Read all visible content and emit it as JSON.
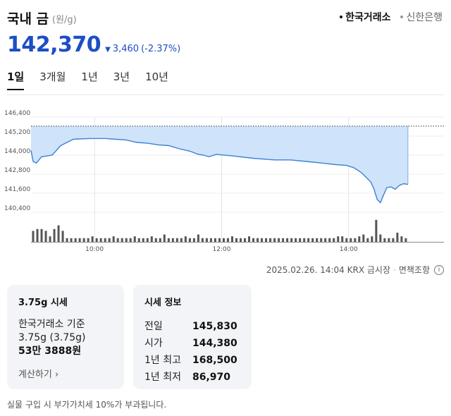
{
  "header": {
    "title": "국내 금",
    "unit": "(원/g)",
    "sources": [
      {
        "label": "한국거래소",
        "active": true
      },
      {
        "label": "신한은행",
        "active": false
      }
    ]
  },
  "price": {
    "value": "142,370",
    "change": "3,460",
    "change_pct": "(-2.37%)",
    "direction_icon": "triangle-down-icon"
  },
  "tabs": [
    {
      "label": "1일",
      "active": true
    },
    {
      "label": "3개월",
      "active": false
    },
    {
      "label": "1년",
      "active": false
    },
    {
      "label": "3년",
      "active": false
    },
    {
      "label": "10년",
      "active": false
    }
  ],
  "chart_data": {
    "type": "area",
    "ylim": [
      140400,
      146400
    ],
    "yticks": [
      "146,400",
      "145,200",
      "144,000",
      "142,800",
      "141,600",
      "140,400"
    ],
    "ytick_values": [
      146400,
      145200,
      144000,
      142800,
      141600,
      140400
    ],
    "xticks": [
      "10:00",
      "12:00",
      "14:00"
    ],
    "xtick_minutes": [
      60,
      180,
      300
    ],
    "x_range_minutes": [
      0,
      390
    ],
    "previous_close": 145830,
    "series": [
      {
        "values": [
          [
            0,
            144300
          ],
          [
            2,
            143600
          ],
          [
            5,
            143500
          ],
          [
            10,
            143900
          ],
          [
            20,
            144000
          ],
          [
            28,
            144600
          ],
          [
            34,
            144800
          ],
          [
            40,
            145000
          ],
          [
            55,
            145050
          ],
          [
            70,
            145050
          ],
          [
            80,
            145000
          ],
          [
            90,
            144950
          ],
          [
            100,
            144800
          ],
          [
            110,
            144750
          ],
          [
            120,
            144650
          ],
          [
            130,
            144600
          ],
          [
            140,
            144400
          ],
          [
            150,
            144250
          ],
          [
            158,
            144050
          ],
          [
            163,
            144000
          ],
          [
            168,
            143900
          ],
          [
            175,
            144050
          ],
          [
            190,
            143950
          ],
          [
            210,
            143800
          ],
          [
            230,
            143700
          ],
          [
            245,
            143700
          ],
          [
            260,
            143600
          ],
          [
            275,
            143500
          ],
          [
            288,
            143400
          ],
          [
            298,
            143350
          ],
          [
            305,
            143200
          ],
          [
            312,
            142900
          ],
          [
            318,
            142500
          ],
          [
            321,
            142300
          ],
          [
            324,
            141850
          ],
          [
            327,
            141200
          ],
          [
            330,
            141000
          ],
          [
            333,
            141500
          ],
          [
            336,
            141950
          ],
          [
            340,
            142000
          ],
          [
            344,
            141850
          ],
          [
            348,
            142100
          ],
          [
            352,
            142200
          ],
          [
            356,
            142150
          ]
        ]
      }
    ],
    "volume": [
      [
        2,
        6
      ],
      [
        6,
        7
      ],
      [
        10,
        7
      ],
      [
        14,
        6
      ],
      [
        18,
        3
      ],
      [
        22,
        7
      ],
      [
        26,
        9
      ],
      [
        30,
        6
      ],
      [
        34,
        2
      ],
      [
        38,
        2
      ],
      [
        42,
        2
      ],
      [
        46,
        2
      ],
      [
        50,
        2
      ],
      [
        54,
        2
      ],
      [
        58,
        3
      ],
      [
        62,
        2
      ],
      [
        66,
        2
      ],
      [
        70,
        2
      ],
      [
        74,
        2
      ],
      [
        78,
        3
      ],
      [
        82,
        2
      ],
      [
        86,
        2
      ],
      [
        90,
        2
      ],
      [
        94,
        2
      ],
      [
        98,
        3
      ],
      [
        102,
        2
      ],
      [
        106,
        2
      ],
      [
        110,
        2
      ],
      [
        114,
        3
      ],
      [
        118,
        2
      ],
      [
        122,
        2
      ],
      [
        126,
        4
      ],
      [
        130,
        2
      ],
      [
        134,
        2
      ],
      [
        138,
        2
      ],
      [
        142,
        2
      ],
      [
        146,
        3
      ],
      [
        150,
        2
      ],
      [
        154,
        2
      ],
      [
        158,
        4
      ],
      [
        162,
        2
      ],
      [
        166,
        2
      ],
      [
        170,
        2
      ],
      [
        174,
        2
      ],
      [
        178,
        2
      ],
      [
        182,
        2
      ],
      [
        186,
        2
      ],
      [
        190,
        3
      ],
      [
        194,
        2
      ],
      [
        198,
        2
      ],
      [
        202,
        2
      ],
      [
        206,
        3
      ],
      [
        210,
        2
      ],
      [
        214,
        2
      ],
      [
        218,
        2
      ],
      [
        222,
        2
      ],
      [
        226,
        2
      ],
      [
        230,
        2
      ],
      [
        234,
        2
      ],
      [
        238,
        2
      ],
      [
        242,
        2
      ],
      [
        246,
        2
      ],
      [
        250,
        2
      ],
      [
        254,
        2
      ],
      [
        258,
        2
      ],
      [
        262,
        2
      ],
      [
        266,
        2
      ],
      [
        270,
        2
      ],
      [
        274,
        2
      ],
      [
        278,
        2
      ],
      [
        282,
        2
      ],
      [
        286,
        2
      ],
      [
        290,
        3
      ],
      [
        294,
        3
      ],
      [
        298,
        2
      ],
      [
        302,
        2
      ],
      [
        306,
        2
      ],
      [
        310,
        3
      ],
      [
        314,
        4
      ],
      [
        318,
        2
      ],
      [
        322,
        3
      ],
      [
        326,
        12
      ],
      [
        330,
        4
      ],
      [
        334,
        2
      ],
      [
        338,
        2
      ],
      [
        342,
        2
      ],
      [
        346,
        5
      ],
      [
        350,
        3
      ],
      [
        354,
        2
      ]
    ]
  },
  "meta": {
    "timestamp": "2025.02.26. 14:04 KRX 금시장",
    "disclaimer": "면책조항",
    "info_icon": "info-icon"
  },
  "card_spot": {
    "title": "3.75g 시세",
    "basis": "한국거래소 기준",
    "weight": "3.75g (3.75g)",
    "price": "53만 3888원",
    "calc_link": "계산하기 ›"
  },
  "card_info": {
    "title": "시세 정보",
    "rows": [
      {
        "label": "전일",
        "value": "145,830"
      },
      {
        "label": "시가",
        "value": "144,380"
      },
      {
        "label": "1년 최고",
        "value": "168,500"
      },
      {
        "label": "1년 최저",
        "value": "86,970"
      }
    ]
  },
  "notice": "실물 구입 시 부가가치세 10%가 부과됩니다.",
  "colors": {
    "accent_blue": "#1d4ec4",
    "area_fill": "#cfe3fb",
    "area_line": "#3b82d6",
    "volume_bar": "#555555"
  }
}
